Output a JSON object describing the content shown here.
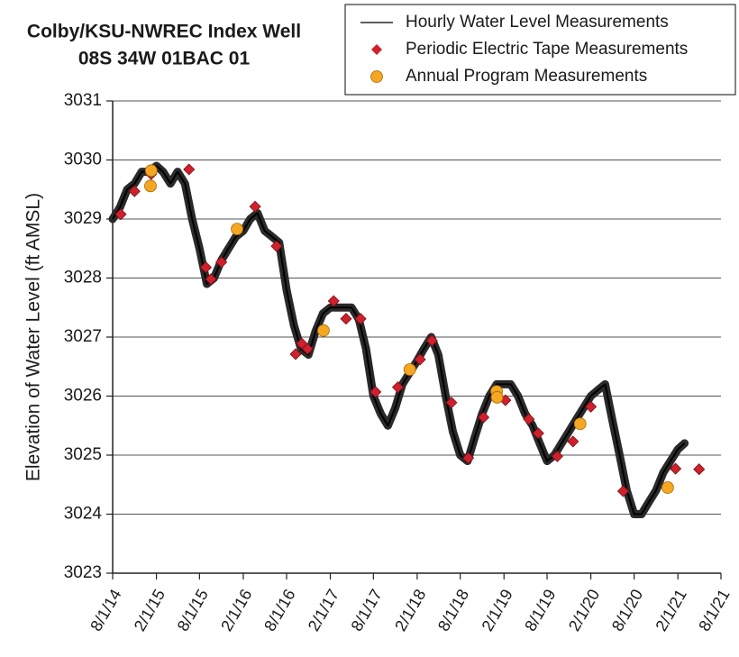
{
  "chart_data": {
    "type": "line",
    "title": "Colby/KSU-NWREC Index Well",
    "subtitle": "08S 34W 01BAC 01",
    "y_label": "Elevation of Water Level (ft AMSL)",
    "xlim": [
      "2014-08-01",
      "2021-08-01"
    ],
    "xticks": [
      {
        "value": "2014-08-01",
        "label": "8/1/14"
      },
      {
        "value": "2015-02-01",
        "label": "2/1/15"
      },
      {
        "value": "2015-08-01",
        "label": "8/1/15"
      },
      {
        "value": "2016-02-01",
        "label": "2/1/16"
      },
      {
        "value": "2016-08-01",
        "label": "8/1/16"
      },
      {
        "value": "2017-02-01",
        "label": "2/1/17"
      },
      {
        "value": "2017-08-01",
        "label": "8/1/17"
      },
      {
        "value": "2018-02-01",
        "label": "2/1/18"
      },
      {
        "value": "2018-08-01",
        "label": "8/1/18"
      },
      {
        "value": "2019-02-01",
        "label": "2/1/19"
      },
      {
        "value": "2019-08-01",
        "label": "8/1/19"
      },
      {
        "value": "2020-02-01",
        "label": "2/1/20"
      },
      {
        "value": "2020-08-01",
        "label": "8/1/20"
      },
      {
        "value": "2021-02-01",
        "label": "2/1/21"
      },
      {
        "value": "2021-08-01",
        "label": "8/1/21"
      }
    ],
    "ylim": [
      3023,
      3031
    ],
    "yticks": [
      3023,
      3024,
      3025,
      3026,
      3027,
      3028,
      3029,
      3030,
      3031
    ],
    "grid": true,
    "legend": "top-right",
    "series": [
      {
        "name": "Hourly Water Level Measurements",
        "color": "#2a2a2a",
        "style": "line",
        "x": [
          "2014-08-01",
          "2014-09-01",
          "2014-10-01",
          "2014-11-01",
          "2014-12-01",
          "2015-01-01",
          "2015-02-01",
          "2015-03-01",
          "2015-04-01",
          "2015-05-01",
          "2015-06-01",
          "2015-07-01",
          "2015-08-01",
          "2015-09-01",
          "2015-10-01",
          "2015-11-01",
          "2015-12-01",
          "2016-01-01",
          "2016-02-01",
          "2016-03-01",
          "2016-04-01",
          "2016-05-01",
          "2016-06-01",
          "2016-07-01",
          "2016-08-01",
          "2016-09-01",
          "2016-10-01",
          "2016-11-01",
          "2016-12-01",
          "2017-01-01",
          "2017-02-01",
          "2017-03-01",
          "2017-04-01",
          "2017-05-01",
          "2017-06-01",
          "2017-07-01",
          "2017-08-01",
          "2017-09-01",
          "2017-10-01",
          "2017-11-01",
          "2017-12-01",
          "2018-01-01",
          "2018-02-01",
          "2018-03-01",
          "2018-04-01",
          "2018-05-01",
          "2018-06-01",
          "2018-07-01",
          "2018-08-01",
          "2018-09-01",
          "2018-10-01",
          "2018-11-01",
          "2018-12-01",
          "2019-01-01",
          "2019-02-01",
          "2019-03-01",
          "2019-04-01",
          "2019-05-01",
          "2019-06-01",
          "2019-07-01",
          "2019-08-01",
          "2019-09-01",
          "2019-10-01",
          "2019-11-01",
          "2019-12-01",
          "2020-01-01",
          "2020-02-01",
          "2020-03-01",
          "2020-04-01",
          "2020-05-01",
          "2020-06-01",
          "2020-07-01",
          "2020-08-01",
          "2020-09-01",
          "2020-10-01",
          "2020-11-01",
          "2020-12-01",
          "2021-01-01",
          "2021-02-01",
          "2021-03-01"
        ],
        "values": [
          3029.0,
          3029.2,
          3029.5,
          3029.6,
          3029.8,
          3029.8,
          3029.9,
          3029.8,
          3029.6,
          3029.8,
          3029.6,
          3029.0,
          3028.5,
          3027.9,
          3028.0,
          3028.3,
          3028.5,
          3028.7,
          3028.8,
          3029.0,
          3029.1,
          3028.8,
          3028.7,
          3028.6,
          3027.8,
          3027.2,
          3026.8,
          3026.7,
          3027.1,
          3027.4,
          3027.5,
          3027.5,
          3027.5,
          3027.5,
          3027.3,
          3026.8,
          3026.0,
          3025.7,
          3025.5,
          3025.8,
          3026.2,
          3026.4,
          3026.6,
          3026.8,
          3027.0,
          3026.7,
          3026.0,
          3025.4,
          3025.0,
          3024.9,
          3025.3,
          3025.7,
          3026.0,
          3026.2,
          3026.2,
          3026.2,
          3026.0,
          3025.7,
          3025.5,
          3025.2,
          3024.9,
          3025.0,
          3025.2,
          3025.4,
          3025.6,
          3025.8,
          3026.0,
          3026.1,
          3026.2,
          3025.6,
          3025.0,
          3024.4,
          3024.0,
          3024.0,
          3024.2,
          3024.4,
          3024.7,
          3024.9,
          3025.1,
          3025.2
        ]
      },
      {
        "name": "Periodic Electric Tape Measurements",
        "color": "#d0202e",
        "style": "diamond",
        "x": [
          "2014-09-04",
          "2014-11-01",
          "2015-01-10",
          "2015-06-18",
          "2015-08-28",
          "2015-09-18",
          "2015-11-01",
          "2016-03-22",
          "2016-06-20",
          "2016-09-08",
          "2016-10-04",
          "2016-10-28",
          "2017-02-15",
          "2017-04-08",
          "2017-06-08",
          "2017-08-10",
          "2017-11-12",
          "2018-02-13",
          "2018-04-04",
          "2018-06-25",
          "2018-09-04",
          "2018-11-07",
          "2019-02-07",
          "2019-05-16",
          "2019-06-25",
          "2019-09-13",
          "2019-11-18",
          "2020-02-01",
          "2020-06-16",
          "2021-01-22",
          "2021-05-01"
        ],
        "values": [
          3029.08,
          3029.47,
          3029.76,
          3029.84,
          3028.18,
          3027.98,
          3028.27,
          3029.21,
          3028.54,
          3026.71,
          3026.89,
          3026.8,
          3027.61,
          3027.31,
          3027.31,
          3026.07,
          3026.15,
          3026.62,
          3026.94,
          3025.89,
          3024.95,
          3025.64,
          3025.93,
          3025.61,
          3025.37,
          3024.98,
          3025.23,
          3025.82,
          3024.39,
          3024.77,
          3024.76
        ]
      },
      {
        "name": "Annual Program Measurements",
        "color": "#f5a623",
        "style": "circle",
        "x": [
          "2015-01-10",
          "2015-01-07",
          "2016-01-06",
          "2017-01-03",
          "2018-01-01",
          "2019-01-01",
          "2019-01-03",
          "2019-12-18",
          "2020-12-20"
        ],
        "values": [
          3029.82,
          3029.56,
          3028.83,
          3027.11,
          3026.45,
          3026.08,
          3025.98,
          3025.53,
          3024.45
        ]
      }
    ]
  }
}
